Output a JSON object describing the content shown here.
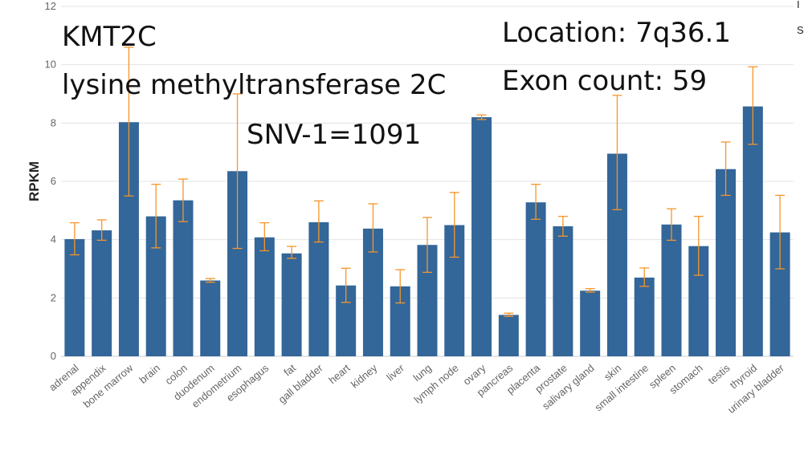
{
  "chart_data": {
    "type": "bar",
    "ylabel": "RPKM",
    "ylim": [
      0,
      12
    ],
    "yticks": [
      0,
      2,
      4,
      6,
      8,
      10,
      12
    ],
    "grid": true,
    "bar_color": "#336699",
    "error_color": "#f5962a",
    "categories": [
      "adrenal",
      "appendix",
      "bone marrow",
      "brain",
      "colon",
      "duodenum",
      "endometrium",
      "esophagus",
      "fat",
      "gall bladder",
      "heart",
      "kidney",
      "liver",
      "lung",
      "lymph node",
      "ovary",
      "pancreas",
      "placenta",
      "prostate",
      "salivary gland",
      "skin",
      "small intestine",
      "spleen",
      "stomach",
      "testis",
      "thyroid",
      "urinary bladder"
    ],
    "values": [
      4.02,
      4.32,
      8.03,
      4.8,
      5.35,
      2.6,
      6.35,
      4.08,
      3.53,
      4.6,
      2.43,
      4.38,
      2.4,
      3.82,
      4.5,
      8.2,
      1.42,
      5.28,
      4.46,
      2.25,
      6.95,
      2.7,
      4.52,
      3.78,
      6.42,
      8.57,
      4.25
    ],
    "error_low": [
      3.48,
      3.98,
      5.5,
      3.72,
      4.62,
      2.54,
      3.7,
      3.62,
      3.36,
      3.92,
      1.85,
      3.58,
      1.83,
      2.88,
      3.4,
      8.12,
      1.37,
      4.7,
      4.12,
      2.2,
      5.03,
      2.4,
      3.98,
      2.78,
      5.52,
      7.27,
      3.0
    ],
    "error_high": [
      4.58,
      4.68,
      10.6,
      5.9,
      6.08,
      2.67,
      9.0,
      4.58,
      3.77,
      5.33,
      3.02,
      5.23,
      2.97,
      4.76,
      5.62,
      8.28,
      1.48,
      5.9,
      4.8,
      2.32,
      8.95,
      3.03,
      5.06,
      4.8,
      7.35,
      9.93,
      5.52
    ],
    "annotations": {
      "gene_symbol": "KMT2C",
      "gene_name": "lysine methyltransferase 2C",
      "snv": "SNV-1=1091",
      "location": "Location: 7q36.1",
      "exon_count": "Exon count: 59"
    },
    "edge_marks": [
      "I",
      "S"
    ]
  }
}
